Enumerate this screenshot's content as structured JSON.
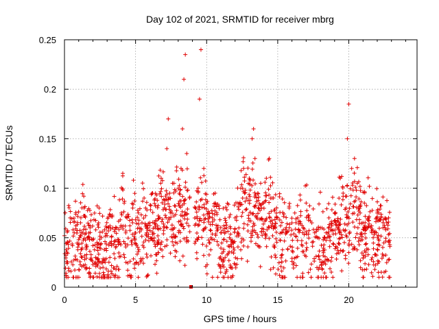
{
  "chart_data": {
    "type": "scatter",
    "title": "Day 102 of 2021, SRMTID for receiver mbrg",
    "xlabel": "GPS time / hours",
    "ylabel": "SRMTID / TECUs",
    "xlim": [
      0,
      24.8
    ],
    "ylim": [
      0,
      0.25
    ],
    "xticks": [
      "0",
      "5",
      "10",
      "15",
      "20"
    ],
    "xtick_values": [
      0,
      5,
      10,
      15,
      20
    ],
    "yticks": [
      "0",
      "0.05",
      "0.1",
      "0.15",
      "0.2",
      "0.25"
    ],
    "ytick_values": [
      0,
      0.05,
      0.1,
      0.15,
      0.2,
      0.25
    ],
    "grid": true,
    "marker": "+",
    "color": "#e00000",
    "series": [
      {
        "name": "SRMTID",
        "x": [
          0.0,
          0.2,
          0.4,
          0.6,
          0.8,
          1.0,
          1.2,
          1.4,
          1.6,
          1.8,
          2.0,
          2.2,
          2.4,
          2.6,
          2.8,
          3.0,
          3.2,
          3.4,
          3.6,
          3.8,
          4.0,
          4.1,
          4.2,
          4.4,
          4.6,
          4.8,
          5.0,
          5.2,
          5.4,
          5.6,
          5.8,
          6.0,
          6.2,
          6.4,
          6.6,
          6.8,
          7.0,
          7.2,
          7.3,
          7.4,
          7.6,
          7.8,
          8.0,
          8.2,
          8.3,
          8.4,
          8.5,
          8.6,
          8.8,
          9.2,
          9.4,
          9.5,
          9.6,
          9.8,
          10.0,
          10.2,
          10.4,
          10.6,
          10.8,
          11.0,
          11.2,
          11.4,
          11.6,
          11.8,
          12.0,
          12.2,
          12.4,
          12.6,
          12.8,
          13.0,
          13.2,
          13.3,
          13.4,
          13.6,
          13.8,
          14.0,
          14.2,
          14.4,
          14.6,
          14.8,
          15.0,
          15.2,
          15.4,
          15.6,
          15.8,
          16.0,
          16.2,
          16.4,
          16.6,
          16.8,
          17.0,
          17.2,
          17.4,
          17.6,
          17.8,
          18.0,
          18.2,
          18.4,
          18.6,
          18.8,
          19.0,
          19.2,
          19.4,
          19.6,
          19.8,
          19.9,
          20.0,
          20.2,
          20.4,
          20.6,
          20.8,
          21.0,
          21.2,
          21.4,
          21.6,
          21.8,
          22.0,
          22.2,
          22.4,
          22.6,
          22.8
        ],
        "y": [
          0.052,
          0.045,
          0.07,
          0.058,
          0.062,
          0.048,
          0.055,
          0.072,
          0.05,
          0.06,
          0.042,
          0.058,
          0.065,
          0.05,
          0.038,
          0.052,
          0.045,
          0.06,
          0.04,
          0.048,
          0.075,
          0.115,
          0.085,
          0.07,
          0.062,
          0.08,
          0.068,
          0.075,
          0.058,
          0.09,
          0.078,
          0.065,
          0.095,
          0.082,
          0.072,
          0.11,
          0.088,
          0.14,
          0.17,
          0.095,
          0.105,
          0.082,
          0.1,
          0.12,
          0.16,
          0.21,
          0.235,
          0.135,
          0.09,
          0.08,
          0.1,
          0.19,
          0.24,
          0.12,
          0.085,
          0.075,
          0.07,
          0.095,
          0.062,
          0.055,
          0.048,
          0.06,
          0.05,
          0.045,
          0.07,
          0.085,
          0.1,
          0.12,
          0.09,
          0.11,
          0.15,
          0.16,
          0.13,
          0.095,
          0.105,
          0.085,
          0.11,
          0.13,
          0.09,
          0.078,
          0.07,
          0.062,
          0.058,
          0.055,
          0.08,
          0.065,
          0.075,
          0.07,
          0.088,
          0.06,
          0.085,
          0.07,
          0.065,
          0.055,
          0.05,
          0.06,
          0.048,
          0.055,
          0.07,
          0.062,
          0.075,
          0.06,
          0.11,
          0.095,
          0.08,
          0.15,
          0.185,
          0.12,
          0.13,
          0.105,
          0.075,
          0.065,
          0.058,
          0.07,
          0.062,
          0.055,
          0.075,
          0.068,
          0.06,
          0.058,
          0.07
        ]
      }
    ],
    "cloud_label": "scatter cloud of SRMTID samples"
  }
}
